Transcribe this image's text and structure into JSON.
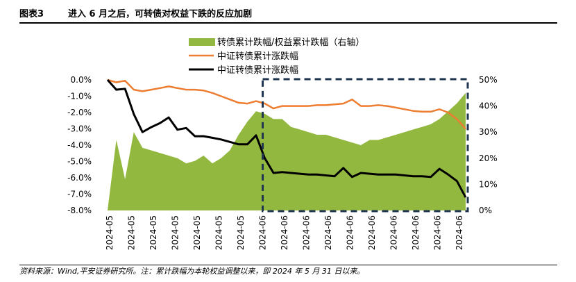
{
  "figure": {
    "number": "图表3",
    "title": "进入 6 月之后，可转债对权益下跌的反应加剧"
  },
  "source_note": "资料来源：Wind,平安证券研究所。注：累计跌幅为本轮权益调整以来，即 2024 年 5 月 31 日以来。",
  "chart_data": {
    "type": "line+area",
    "title": "",
    "categories": [
      "2024-05",
      "2024-05",
      "2024-05",
      "2024-05",
      "2024-05",
      "2024-05",
      "2024-05",
      "2024-05",
      "2024-05",
      "2024-05",
      "2024-05",
      "2024-05",
      "2024-05",
      "2024-05",
      "2024-05",
      "2024-05",
      "2024-05",
      "2024-05",
      "2024-06",
      "2024-06",
      "2024-06",
      "2024-06",
      "2024-06",
      "2024-06",
      "2024-06",
      "2024-06",
      "2024-06",
      "2024-06",
      "2024-06",
      "2024-06",
      "2024-06",
      "2024-06",
      "2024-06",
      "2024-06",
      "2024-06",
      "2024-06",
      "2024-06",
      "2024-06",
      "2024-06",
      "2024-06",
      "2024-06",
      "2024-06"
    ],
    "x_tick_labels": [
      "2024-05",
      "2024-05",
      "2024-05",
      "2024-05",
      "2024-05",
      "2024-05",
      "2024-05",
      "2024-06",
      "2024-06",
      "2024-06",
      "2024-06",
      "2024-06",
      "2024-06",
      "2024-06",
      "2024-06",
      "2024-06",
      "2024-06"
    ],
    "left_axis": {
      "range": [
        -8.0,
        0.0
      ],
      "ticks": [
        "0.0%",
        "-1.0%",
        "-2.0%",
        "-3.0%",
        "-4.0%",
        "-5.0%",
        "-6.0%",
        "-7.0%",
        "-8.0%"
      ]
    },
    "right_axis": {
      "range": [
        0,
        50
      ],
      "ticks": [
        "50%",
        "40%",
        "30%",
        "20%",
        "10%",
        "0%"
      ]
    },
    "series": [
      {
        "name": "转债累计跌幅/权益累计跌幅（右轴）",
        "kind": "area",
        "axis": "right",
        "color": "#92b83f",
        "values": [
          0,
          27,
          12,
          30,
          24,
          23,
          22,
          21,
          20,
          18,
          19,
          21,
          18,
          20,
          23,
          29,
          34,
          38,
          37,
          35,
          35,
          32,
          31,
          30,
          29,
          29,
          28,
          27,
          26,
          25,
          27,
          27,
          28,
          29,
          30,
          31,
          32,
          33,
          35,
          38,
          41,
          45
        ]
      },
      {
        "name": "中证转债累计涨跌幅",
        "kind": "line",
        "axis": "left",
        "color": "#ed7d31",
        "values": [
          0.0,
          -0.15,
          -0.05,
          -0.6,
          -0.7,
          -0.6,
          -0.5,
          -0.4,
          -0.5,
          -0.6,
          -0.6,
          -0.65,
          -0.8,
          -1.0,
          -1.2,
          -1.4,
          -1.45,
          -1.3,
          -1.45,
          -1.75,
          -1.6,
          -1.6,
          -1.6,
          -1.6,
          -1.55,
          -1.55,
          -1.5,
          -1.45,
          -1.2,
          -1.6,
          -1.6,
          -1.55,
          -1.6,
          -1.7,
          -1.8,
          -1.9,
          -1.95,
          -1.95,
          -1.8,
          -2.0,
          -2.4,
          -3.0
        ]
      },
      {
        "name": "中证转债累计涨跌幅",
        "kind": "line",
        "axis": "left",
        "color": "#000000",
        "values": [
          0.0,
          -0.6,
          -0.55,
          -2.1,
          -3.2,
          -2.9,
          -2.65,
          -2.3,
          -3.05,
          -2.95,
          -3.45,
          -3.45,
          -3.55,
          -3.65,
          -3.8,
          -3.95,
          -3.95,
          -3.4,
          -4.8,
          -5.7,
          -5.65,
          -5.7,
          -5.75,
          -5.8,
          -5.8,
          -5.85,
          -5.9,
          -5.4,
          -5.95,
          -5.7,
          -5.75,
          -5.8,
          -5.8,
          -5.8,
          -5.85,
          -5.9,
          -5.9,
          -5.95,
          -5.45,
          -5.8,
          -6.2,
          -7.2
        ]
      }
    ],
    "highlight_box": {
      "from_category_index": 18,
      "to_category_index": 41,
      "style": "dashed"
    }
  }
}
